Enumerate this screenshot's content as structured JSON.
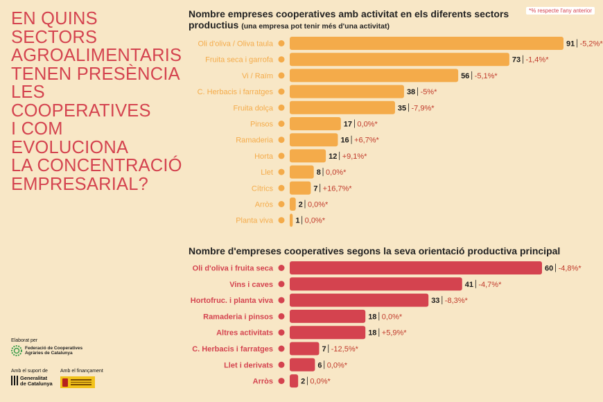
{
  "headline": [
    "EN QUINS SECTORS",
    "AGROALIMENTARIS",
    "TENEN PRESÈNCIA",
    "LES COOPERATIVES",
    "I COM EVOLUCIONA",
    "LA CONCENTRACIÓ",
    "EMPRESARIAL?"
  ],
  "note": "*% respecte l'any anterior",
  "colors": {
    "background": "#f8e7c6",
    "chart1_bar": "#f4ab4a",
    "chart2_bar": "#d4434f",
    "headline": "#d4434f"
  },
  "footer": {
    "elaborat": "Elaborat per",
    "fcac_line1": "Federació de Cooperatives",
    "fcac_line2": "Agràries de Catalunya",
    "suport": "Amb el suport de",
    "finançament": "Amb el finançament",
    "gencat_line1": "Generalitat",
    "gencat_line2": "de Catalunya"
  },
  "chart_data": [
    {
      "type": "bar",
      "orientation": "horizontal",
      "title": "Nombre empreses cooperatives amb activitat en els diferents sectors productius",
      "title_main": "Nombre empreses cooperatives amb activitat en els diferents sectors productius",
      "subtitle": "(una empresa pot tenir més d'una activitat)",
      "categories": [
        "Oli d'oliva / Oliva taula",
        "Fruita seca i garrofa",
        "Vi / Raïm",
        "C. Herbacis i farratges",
        "Fruita dolça",
        "Pinsos",
        "Ramaderia",
        "Horta",
        "Llet",
        "Cítrics",
        "Arròs",
        "Planta viva"
      ],
      "values": [
        91,
        73,
        56,
        38,
        35,
        17,
        16,
        12,
        8,
        7,
        2,
        1
      ],
      "changes": [
        "-5,2%*",
        "-1,4%*",
        "-5,1%*",
        "-5%*",
        "-7,9%*",
        "0,0%*",
        "+6,7%*",
        "+9,1%*",
        "0,0%*",
        "+16,7%*",
        "0,0%*",
        "0,0%*"
      ],
      "icons": [
        "olive-icon",
        "almond-icon",
        "grapes-icon",
        "cereal-icon",
        "peach-icon",
        "feed-sack-icon",
        "cow-icon",
        "vegetables-icon",
        "milk-bottle-icon",
        "orange-icon",
        "rice-icon",
        "potted-plant-icon"
      ],
      "xlim": [
        0,
        91
      ]
    },
    {
      "type": "bar",
      "orientation": "horizontal",
      "title": "Nombre d'empreses cooperatives segons la seva orientació productiva principal",
      "categories": [
        "Oli d'oliva i fruita seca",
        "Vins i caves",
        "Hortofruc. i planta viva",
        "Ramaderia i pinsos",
        "Altres activitats",
        "C. Herbacis i farratges",
        "Llet i derivats",
        "Arròs"
      ],
      "values": [
        60,
        41,
        33,
        18,
        18,
        7,
        6,
        2
      ],
      "changes": [
        "-4,8%*",
        "-4,7%*",
        "-8,3%*",
        "0,0%*",
        "+5,9%*",
        "-12,5%*",
        "0,0%*",
        "0,0%*"
      ],
      "icons": [
        "olive-branch-icon",
        "wine-bottle-icon",
        "cherries-icon",
        "cow-sack-icon",
        "basket-icon",
        "cereal-icon",
        "milk-bottle-icon",
        "rice-icon"
      ],
      "xlim": [
        0,
        60
      ]
    }
  ]
}
